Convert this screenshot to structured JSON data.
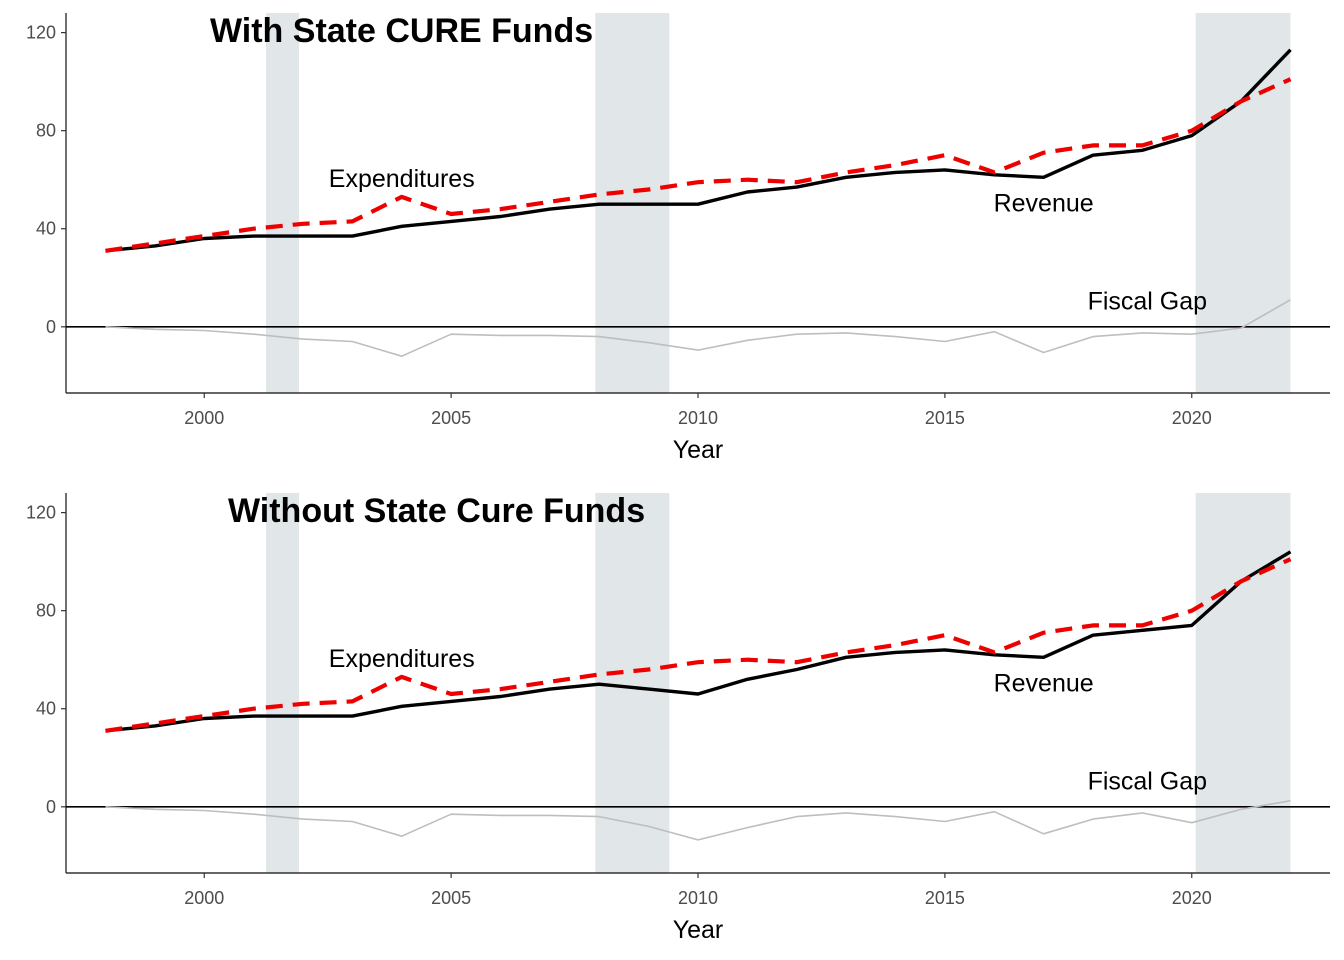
{
  "colors": {
    "revenue": "#000000",
    "expenditures": "#ee0000",
    "fiscal_gap": "#bebebe",
    "recession_shade": "#e1e6e9",
    "zero_line": "#000000"
  },
  "chart_data": [
    {
      "type": "line",
      "title": "With State CURE Funds",
      "xlabel": "Year",
      "ylabel": "",
      "xlim": [
        1997.2,
        2022.8
      ],
      "ylim": [
        -27,
        128
      ],
      "x_ticks": [
        2000,
        2005,
        2010,
        2015,
        2020
      ],
      "x_tick_labels": [
        "2000",
        "2005",
        "2010",
        "2015",
        "2020"
      ],
      "y_ticks": [
        0,
        40,
        80,
        120
      ],
      "y_tick_labels": [
        "0",
        "40",
        "80",
        "120"
      ],
      "grid": false,
      "legend": "none",
      "shaded_periods": [
        [
          2001.25,
          2001.92
        ],
        [
          2007.92,
          2009.42
        ],
        [
          2020.08,
          2022
        ]
      ],
      "x": [
        1998,
        1999,
        2000,
        2001,
        2002,
        2003,
        2004,
        2005,
        2006,
        2007,
        2008,
        2009,
        2010,
        2011,
        2012,
        2013,
        2014,
        2015,
        2016,
        2017,
        2018,
        2019,
        2020,
        2021,
        2022
      ],
      "series": [
        {
          "name": "Expenditures",
          "style": "dashed",
          "values": [
            31,
            34,
            37,
            40,
            42,
            43,
            53,
            46,
            48,
            51,
            54,
            56,
            59,
            60,
            59,
            63,
            66,
            70,
            63,
            71,
            74,
            74,
            80,
            92,
            101
          ]
        },
        {
          "name": "Revenue",
          "style": "solid",
          "values": [
            31,
            33,
            36,
            37,
            37,
            37,
            41,
            43,
            45,
            48,
            50,
            50,
            50,
            55,
            57,
            61,
            63,
            64,
            62,
            61,
            70,
            72,
            78,
            92,
            113
          ]
        },
        {
          "name": "Fiscal Gap",
          "style": "thin",
          "values": [
            0,
            -1,
            -1.5,
            -3,
            -5,
            -6,
            -12,
            -3,
            -3.5,
            -3.5,
            -4,
            -6.5,
            -9.5,
            -5.5,
            -3,
            -2.5,
            -4,
            -6,
            -2,
            -10.5,
            -4,
            -2.5,
            -3,
            -0.5,
            11
          ]
        }
      ],
      "annotations": [
        {
          "text": "Expenditures",
          "x": 2004,
          "y": 57
        },
        {
          "text": "Revenue",
          "x": 2017,
          "y": 47
        },
        {
          "text": "Fiscal Gap",
          "x": 2019.1,
          "y": 7
        }
      ]
    },
    {
      "type": "line",
      "title": "Without State Cure Funds",
      "xlabel": "Year",
      "ylabel": "",
      "xlim": [
        1997.2,
        2022.8
      ],
      "ylim": [
        -27,
        128
      ],
      "x_ticks": [
        2000,
        2005,
        2010,
        2015,
        2020
      ],
      "x_tick_labels": [
        "2000",
        "2005",
        "2010",
        "2015",
        "2020"
      ],
      "y_ticks": [
        0,
        40,
        80,
        120
      ],
      "y_tick_labels": [
        "0",
        "40",
        "80",
        "120"
      ],
      "grid": false,
      "legend": "none",
      "shaded_periods": [
        [
          2001.25,
          2001.92
        ],
        [
          2007.92,
          2009.42
        ],
        [
          2020.08,
          2022
        ]
      ],
      "x": [
        1998,
        1999,
        2000,
        2001,
        2002,
        2003,
        2004,
        2005,
        2006,
        2007,
        2008,
        2009,
        2010,
        2011,
        2012,
        2013,
        2014,
        2015,
        2016,
        2017,
        2018,
        2019,
        2020,
        2021,
        2022
      ],
      "series": [
        {
          "name": "Expenditures",
          "style": "dashed",
          "values": [
            31,
            34,
            37,
            40,
            42,
            43,
            53,
            46,
            48,
            51,
            54,
            56,
            59,
            60,
            59,
            63,
            66,
            70,
            63,
            71,
            74,
            74,
            80,
            92,
            101
          ]
        },
        {
          "name": "Revenue",
          "style": "solid",
          "values": [
            31,
            33,
            36,
            37,
            37,
            37,
            41,
            43,
            45,
            48,
            50,
            48,
            46,
            52,
            56,
            61,
            63,
            64,
            62,
            61,
            70,
            72,
            74,
            92,
            104
          ]
        },
        {
          "name": "Fiscal Gap",
          "style": "thin",
          "values": [
            0,
            -1,
            -1.5,
            -3,
            -5,
            -6,
            -12,
            -3,
            -3.5,
            -3.5,
            -4,
            -8,
            -13.5,
            -8.5,
            -4,
            -2.5,
            -4,
            -6,
            -2,
            -11,
            -5,
            -2.5,
            -6.5,
            -1,
            2.5
          ]
        }
      ],
      "annotations": [
        {
          "text": "Expenditures",
          "x": 2004,
          "y": 57
        },
        {
          "text": "Revenue",
          "x": 2017,
          "y": 47
        },
        {
          "text": "Fiscal Gap",
          "x": 2019.1,
          "y": 7
        }
      ]
    }
  ]
}
